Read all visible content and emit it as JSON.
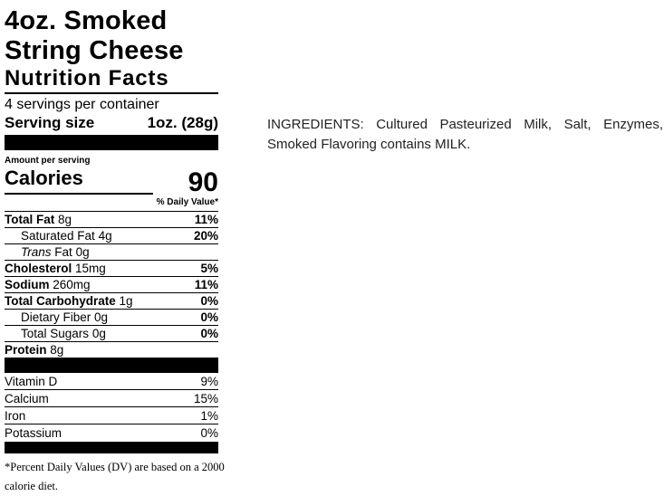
{
  "product": {
    "title_line1": "4oz. Smoked",
    "title_line2": "String Cheese"
  },
  "nutrition": {
    "heading": "Nutrition Facts",
    "servings_per_container": "4 servings per container",
    "serving_size_label": "Serving size",
    "serving_size_value": "1oz. (28g)",
    "amount_per_serving": "Amount per serving",
    "calories_label": "Calories",
    "calories_value": "90",
    "daily_value_header": "% Daily Value*",
    "nutrients": [
      {
        "name": "Total Fat",
        "amount": "8g",
        "dv": "11%"
      },
      {
        "name": "Saturated Fat",
        "amount": "4g",
        "dv": "20%"
      },
      {
        "name_italic": "Trans",
        "name": "Fat",
        "amount": "0g",
        "dv": ""
      },
      {
        "name": "Cholesterol",
        "amount": "15mg",
        "dv": "5%"
      },
      {
        "name": "Sodium",
        "amount": "260mg",
        "dv": "11%"
      },
      {
        "name": "Total Carbohydrate",
        "amount": "1g",
        "dv": "0%"
      },
      {
        "name": "Dietary Fiber",
        "amount": "0g",
        "dv": "0%"
      },
      {
        "name": "Total Sugars",
        "amount": "0g",
        "dv": "0%"
      },
      {
        "name": "Protein",
        "amount": "8g",
        "dv": ""
      }
    ],
    "vitamins": [
      {
        "name": "Vitamin D",
        "dv": "9%"
      },
      {
        "name": "Calcium",
        "dv": "15%"
      },
      {
        "name": "Iron",
        "dv": "1%"
      },
      {
        "name": "Potassium",
        "dv": "0%"
      }
    ],
    "footnote": "*Percent Daily Values (DV) are based on a 2000 calorie diet."
  },
  "ingredients": {
    "text": "INGREDIENTS: Cultured Pasteurized Milk, Salt, Enzymes, Smoked Flavoring contains MILK."
  },
  "colors": {
    "text": "#000000",
    "background": "#ffffff",
    "bar": "#000000"
  }
}
